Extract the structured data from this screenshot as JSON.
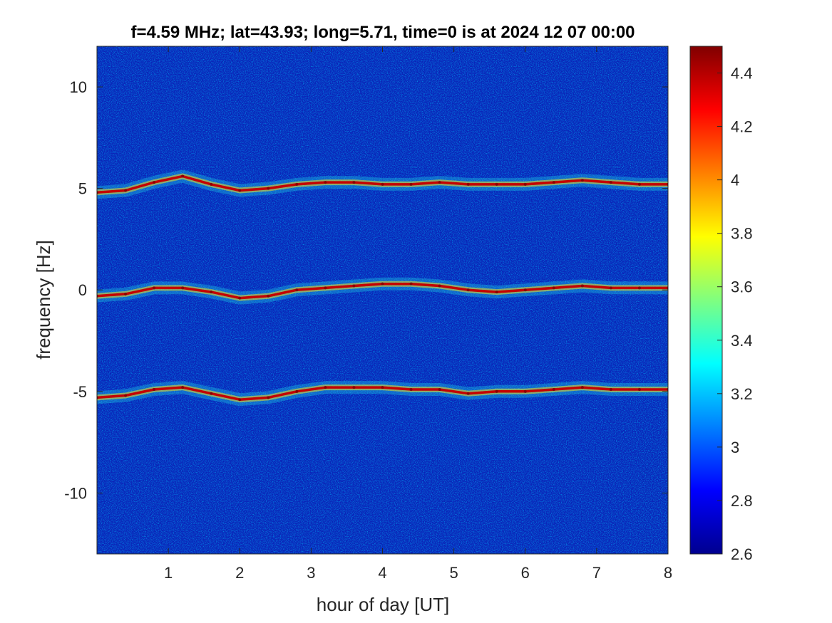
{
  "chart_data": {
    "type": "heatmap",
    "title": "f=4.59 MHz;  lat=43.93; long=5.71, time=0 is at 2024 12 07 00:00",
    "xlabel": "hour of day [UT]",
    "ylabel": "frequency [Hz]",
    "xlim": [
      0,
      8
    ],
    "ylim": [
      -13,
      12
    ],
    "xticks": [
      1,
      2,
      3,
      4,
      5,
      6,
      7,
      8
    ],
    "xtick_labels": [
      "1",
      "2",
      "3",
      "4",
      "5",
      "6",
      "7",
      "8"
    ],
    "yticks": [
      10,
      5,
      0,
      -5,
      -10
    ],
    "ytick_labels": [
      "10",
      "5",
      "0",
      "-5",
      "-10"
    ],
    "colorbar": {
      "colormap": "jet",
      "clim": [
        2.6,
        4.5
      ],
      "ticks": [
        4.4,
        4.2,
        4.0,
        3.8,
        3.6,
        3.4,
        3.2,
        3.0,
        2.8,
        2.6
      ],
      "tick_labels": [
        "4.4",
        "4.2",
        "4",
        "3.8",
        "3.6",
        "3.4",
        "3.2",
        "3",
        "2.8",
        "2.6"
      ]
    },
    "background_level": 2.75,
    "series": [
      {
        "x": [
          0,
          0.4,
          0.8,
          1.2,
          1.6,
          2.0,
          2.4,
          2.8,
          3.2,
          3.6,
          4.0,
          4.4,
          4.8,
          5.2,
          5.6,
          6.0,
          6.4,
          6.8,
          7.2,
          7.6,
          8.0
        ],
        "values": [
          -0.3,
          -0.2,
          0.1,
          0.1,
          -0.1,
          -0.4,
          -0.3,
          0.0,
          0.1,
          0.2,
          0.3,
          0.3,
          0.2,
          0.0,
          -0.1,
          0.0,
          0.1,
          0.2,
          0.1,
          0.1,
          0.1
        ]
      },
      {
        "x": [
          0,
          0.4,
          0.8,
          1.2,
          1.6,
          2.0,
          2.4,
          2.8,
          3.2,
          3.6,
          4.0,
          4.4,
          4.8,
          5.2,
          5.6,
          6.0,
          6.4,
          6.8,
          7.2,
          7.6,
          8.0
        ],
        "values": [
          4.8,
          4.9,
          5.3,
          5.6,
          5.2,
          4.9,
          5.0,
          5.2,
          5.3,
          5.3,
          5.2,
          5.2,
          5.3,
          5.2,
          5.2,
          5.2,
          5.3,
          5.4,
          5.3,
          5.2,
          5.2
        ]
      },
      {
        "x": [
          0,
          0.4,
          0.8,
          1.2,
          1.6,
          2.0,
          2.4,
          2.8,
          3.2,
          3.6,
          4.0,
          4.4,
          4.8,
          5.2,
          5.6,
          6.0,
          6.4,
          6.8,
          7.2,
          7.6,
          8.0
        ],
        "values": [
          -5.3,
          -5.2,
          -4.9,
          -4.8,
          -5.1,
          -5.4,
          -5.3,
          -5.0,
          -4.8,
          -4.8,
          -4.8,
          -4.9,
          -4.9,
          -5.1,
          -5.0,
          -5.0,
          -4.9,
          -4.8,
          -4.9,
          -4.9,
          -4.9
        ]
      }
    ]
  }
}
